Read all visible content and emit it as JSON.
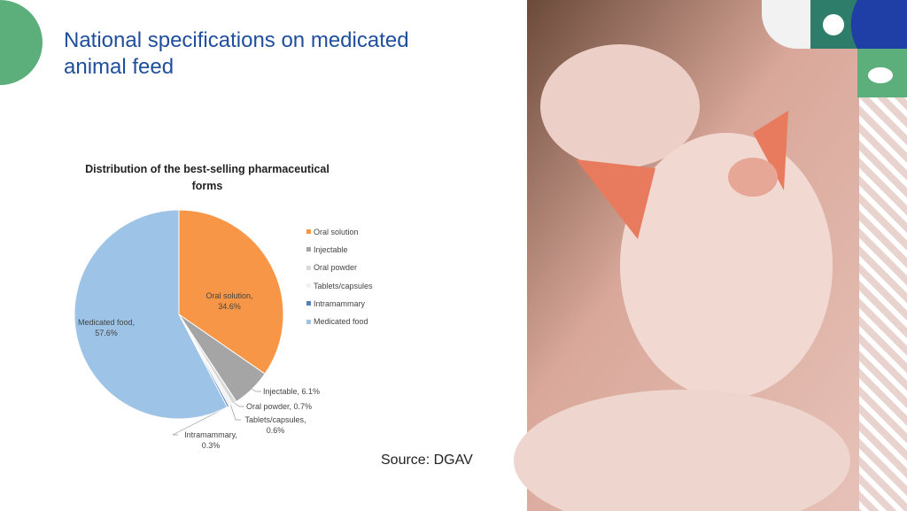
{
  "slide_title": "National specifications on medicated animal feed",
  "source": "Source: DGAV",
  "chart_data": {
    "type": "pie",
    "title": "Distribution of the best-selling pharmaceutical forms",
    "categories": [
      "Oral solution",
      "Injectable",
      "Oral powder",
      "Tablets/capsules",
      "Intramammary",
      "Medicated food"
    ],
    "values": [
      34.6,
      6.1,
      0.7,
      0.6,
      0.3,
      57.6
    ],
    "value_labels": [
      "Oral solution, 34.6%",
      "Injectable, 6.1%",
      "Oral powder, 0.7%",
      "Tablets/capsules, 0.6%",
      "Intramammary, 0.3%",
      "Medicated food, 57.6%"
    ],
    "colors": [
      "#f79646",
      "#a5a5a5",
      "#d9d9d9",
      "#f2f2f2",
      "#4f81bd",
      "#9dc3e6"
    ],
    "legend": "right"
  }
}
